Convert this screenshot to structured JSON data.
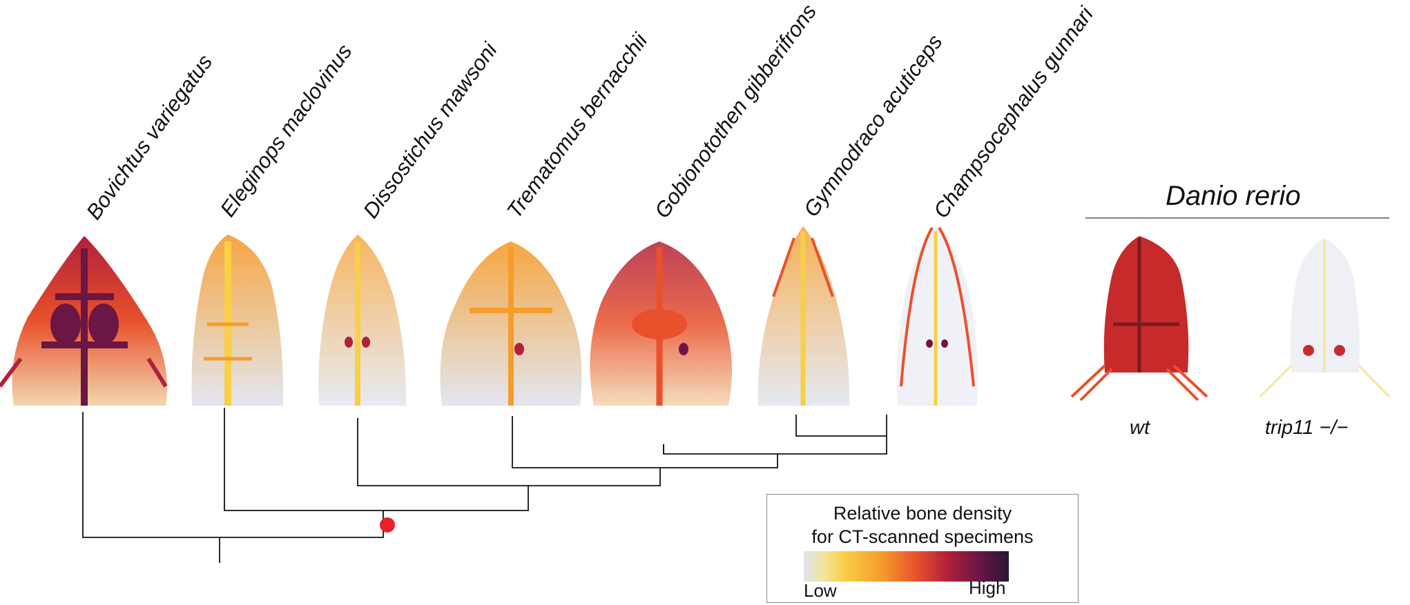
{
  "species": [
    "Bovichtus variegatus",
    "Eleginops maclovinus",
    "Dissostichus mawsoni",
    "Trematomus bernacchii",
    "Gobionotothen gibberifrons",
    "Gymnodraco acuticeps",
    "Champsocephalus gunnari"
  ],
  "zebrafish": {
    "title": "Danio rerio",
    "samples": [
      "wt",
      "trip11 −/−"
    ]
  },
  "legend": {
    "title_line1": "Relative bone density",
    "title_line2": "for CT-scanned specimens",
    "low": "Low",
    "high": "High"
  },
  "colors": {
    "scale": [
      "#dfe4ee",
      "#f4e39a",
      "#f8cf45",
      "#f59c2c",
      "#e8512c",
      "#b1203a",
      "#6b1645",
      "#291536"
    ],
    "node_marker": "#e8202a",
    "tree_line": "#111111"
  }
}
